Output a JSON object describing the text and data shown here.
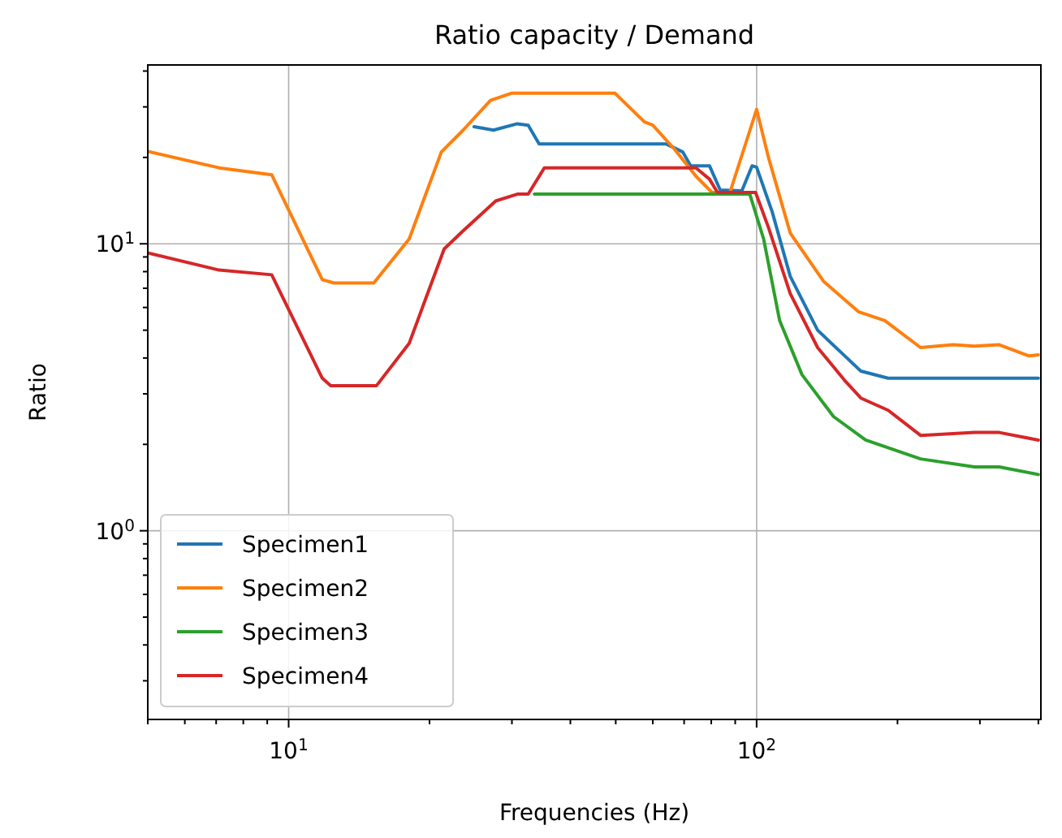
{
  "chart_data": {
    "type": "line",
    "title": "Ratio capacity / Demand",
    "xlabel": "Frequencies (Hz)",
    "ylabel": "Ratio",
    "log": "xy",
    "grid": true,
    "legend": "bottom left",
    "xlim": [
      5,
      405
    ],
    "ylim": [
      0.22,
      42
    ],
    "xticks": [
      {
        "value": 5,
        "label": null
      },
      {
        "value": 6,
        "label": null
      },
      {
        "value": 7,
        "label": null
      },
      {
        "value": 8,
        "label": null
      },
      {
        "value": 9,
        "label": null
      },
      {
        "value": 10,
        "label": "10$^{1}$"
      },
      {
        "value": 20,
        "label": null
      },
      {
        "value": 30,
        "label": null
      },
      {
        "value": 40,
        "label": null
      },
      {
        "value": 50,
        "label": null
      },
      {
        "value": 60,
        "label": null
      },
      {
        "value": 70,
        "label": null
      },
      {
        "value": 80,
        "label": null
      },
      {
        "value": 90,
        "label": null
      },
      {
        "value": 100,
        "label": "10$^{2}$"
      },
      {
        "value": 200,
        "label": null
      },
      {
        "value": 300,
        "label": null
      },
      {
        "value": 400,
        "label": null
      }
    ],
    "yticks": [
      {
        "value": 0.3,
        "label": null
      },
      {
        "value": 0.4,
        "label": null
      },
      {
        "value": 0.5,
        "label": null
      },
      {
        "value": 0.6,
        "label": null
      },
      {
        "value": 0.7,
        "label": null
      },
      {
        "value": 0.8,
        "label": null
      },
      {
        "value": 0.9,
        "label": null
      },
      {
        "value": 1,
        "label": "10$^{0}$"
      },
      {
        "value": 2,
        "label": null
      },
      {
        "value": 3,
        "label": null
      },
      {
        "value": 4,
        "label": null
      },
      {
        "value": 5,
        "label": null
      },
      {
        "value": 6,
        "label": null
      },
      {
        "value": 7,
        "label": null
      },
      {
        "value": 8,
        "label": null
      },
      {
        "value": 9,
        "label": null
      },
      {
        "value": 10,
        "label": "10$^{1}$"
      },
      {
        "value": 20,
        "label": null
      },
      {
        "value": 30,
        "label": null
      },
      {
        "value": 40,
        "label": null
      }
    ],
    "series": [
      {
        "name": "Specimen1",
        "color": "#1f77b4",
        "x": [
          24.9,
          27.4,
          30.8,
          32.5,
          34.3,
          64,
          69.5,
          72.3,
          79.3,
          83.6,
          93,
          97.8,
          100,
          108,
          118,
          135,
          156,
          167,
          191,
          400
        ],
        "values": [
          25.6,
          24.9,
          26.2,
          25.9,
          22.3,
          22.3,
          20.9,
          18.7,
          18.7,
          15.4,
          15.3,
          18.7,
          18.5,
          12.9,
          7.7,
          5,
          4,
          3.6,
          3.4,
          3.4
        ]
      },
      {
        "name": "Specimen2",
        "color": "#ff7f0e",
        "x": [
          5,
          7.1,
          9.2,
          11.8,
          12.5,
          15.2,
          18.1,
          21.2,
          23.6,
          27,
          30,
          49.8,
          57.6,
          60,
          66.7,
          74.2,
          80.3,
          87.7,
          100,
          106,
          118,
          139,
          165,
          188,
          224,
          263,
          292,
          330,
          381,
          400
        ],
        "values": [
          21,
          18.4,
          17.4,
          7.5,
          7.3,
          7.3,
          10.4,
          20.9,
          24.9,
          31.6,
          33.5,
          33.5,
          26.6,
          25.9,
          21.4,
          17.2,
          15.1,
          15.1,
          29.4,
          20,
          10.9,
          7.4,
          5.8,
          5.4,
          4.35,
          4.45,
          4.4,
          4.45,
          4.07,
          4.1
        ]
      },
      {
        "name": "Specimen3",
        "color": "#2ca02c",
        "x": [
          33.5,
          96.7,
          103.5,
          112,
          125,
          146,
          171,
          224,
          292,
          330,
          400
        ],
        "values": [
          14.9,
          14.9,
          10.4,
          5.4,
          3.5,
          2.5,
          2.07,
          1.78,
          1.67,
          1.67,
          1.57
        ]
      },
      {
        "name": "Specimen4",
        "color": "#d62728",
        "x": [
          5,
          7.1,
          9.2,
          11.8,
          12.3,
          15.4,
          18.1,
          19.6,
          21.5,
          23.6,
          27.7,
          30.8,
          32.5,
          35.2,
          74.2,
          79.3,
          82.5,
          99.5,
          106,
          118,
          135,
          154,
          167,
          191,
          224,
          263,
          292,
          330,
          400
        ],
        "values": [
          9.3,
          8.1,
          7.8,
          3.4,
          3.2,
          3.2,
          4.5,
          6.4,
          9.6,
          11.1,
          14.1,
          14.9,
          14.9,
          18.4,
          18.4,
          16.8,
          15.1,
          15.1,
          11.4,
          6.7,
          4.35,
          3.35,
          2.9,
          2.63,
          2.15,
          2.18,
          2.2,
          2.2,
          2.07
        ]
      }
    ]
  }
}
